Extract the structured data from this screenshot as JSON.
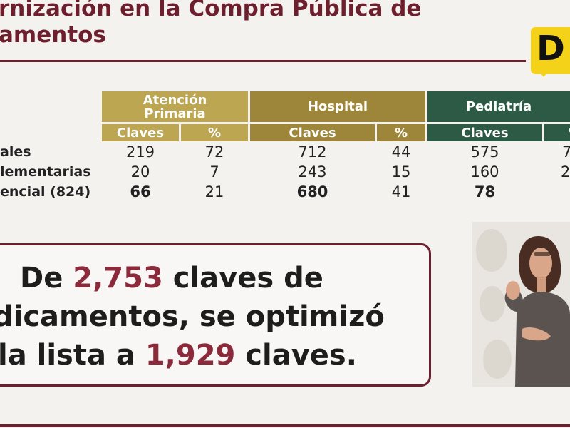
{
  "title": {
    "line1": "rnización en la Compra Pública de",
    "line2": "amentos"
  },
  "logo": {
    "letter": "D",
    "color": "#f4d21a"
  },
  "colors": {
    "accent": "#6d1f2e",
    "gold": "#bda651",
    "brown": "#9d8539",
    "green": "#2d5a45"
  },
  "table": {
    "groups": [
      "Atención Primaria",
      "Hospital",
      "Pediatría"
    ],
    "subheaders": [
      "Claves",
      "%",
      "Claves",
      "%",
      "Claves",
      "%"
    ],
    "rows": [
      {
        "label": "ales",
        "values": [
          "219",
          "72",
          "712",
          "44",
          "575",
          "7"
        ]
      },
      {
        "label": "lementarias",
        "values": [
          "20",
          "7",
          "243",
          "15",
          "160",
          "2"
        ]
      },
      {
        "label": "encial (824)",
        "values": [
          "66",
          "21",
          "680",
          "41",
          "78",
          ""
        ]
      }
    ]
  },
  "callout": {
    "l1_a": "De ",
    "l1_num": "2,753",
    "l1_b": " claves de",
    "l2": "dicamentos, se optimizó",
    "l3_a": "la lista a ",
    "l3_num": "1,929",
    "l3_b": " claves."
  },
  "video": {
    "icon": "sign-language-interpreter"
  }
}
